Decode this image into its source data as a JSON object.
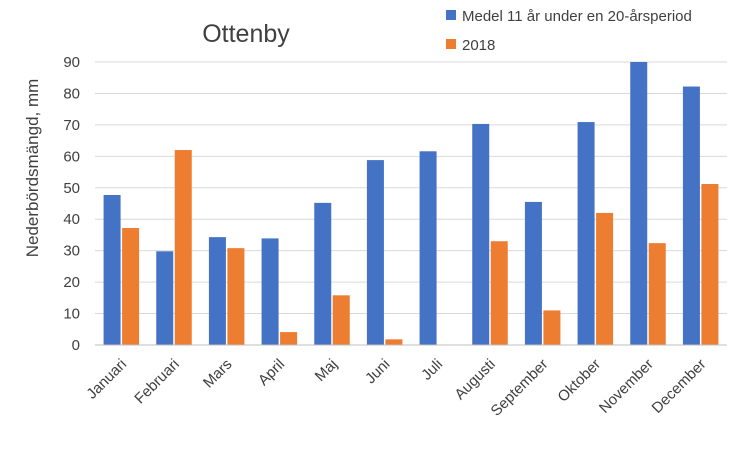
{
  "chart_data": {
    "type": "bar",
    "title": "Ottenby",
    "xlabel": "",
    "ylabel": "Nederbördsmängd, mm",
    "ylim": [
      0,
      90
    ],
    "yticks": [
      0,
      10,
      20,
      30,
      40,
      50,
      60,
      70,
      80,
      90
    ],
    "grid": true,
    "legend_position": "top-right",
    "categories": [
      "Januari",
      "Februari",
      "Mars",
      "April",
      "Maj",
      "Juni",
      "Juli",
      "Augusti",
      "September",
      "Oktober",
      "November",
      "December"
    ],
    "series": [
      {
        "name": "Medel 11 år under en 20-årsperiod",
        "color": "#4472c4",
        "values": [
          47.7,
          29.8,
          34.3,
          33.9,
          45.2,
          58.8,
          61.6,
          70.3,
          45.5,
          70.9,
          90.0,
          82.2
        ]
      },
      {
        "name": "2018",
        "color": "#ed7d31",
        "values": [
          37.2,
          62.0,
          30.8,
          4.1,
          15.8,
          1.8,
          0,
          33.0,
          11.0,
          42.0,
          32.4,
          51.2
        ]
      }
    ]
  }
}
